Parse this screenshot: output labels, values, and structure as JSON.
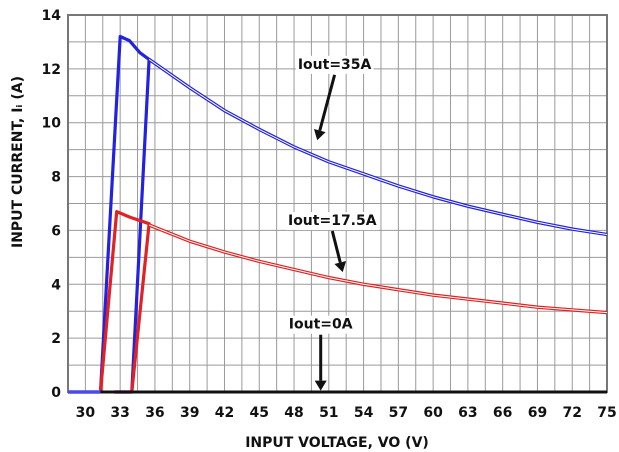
{
  "chart_data": {
    "type": "line",
    "xlabel": "INPUT VOLTAGE, VO (V)",
    "ylabel": "INPUT CURRENT, Iᵢ (A)",
    "xlim": [
      28.5,
      75
    ],
    "ylim": [
      0,
      14
    ],
    "xticks": [
      30,
      33,
      36,
      39,
      42,
      45,
      48,
      51,
      54,
      57,
      60,
      63,
      66,
      69,
      72,
      75
    ],
    "yticks": [
      0,
      2,
      4,
      6,
      8,
      10,
      12,
      14
    ],
    "grid": true,
    "series": [
      {
        "name": "Iout=35A",
        "color": "#2222e0",
        "rising": [
          [
            31.3,
            0
          ],
          [
            33.0,
            13.2
          ],
          [
            33.8,
            13.05
          ],
          [
            34.7,
            12.6
          ],
          [
            35.5,
            12.35
          ],
          [
            34.0,
            0
          ],
          [
            32.5,
            0
          ]
        ],
        "curve": [
          [
            35.5,
            12.35
          ],
          [
            39,
            11.3
          ],
          [
            42,
            10.45
          ],
          [
            45,
            9.75
          ],
          [
            48,
            9.1
          ],
          [
            51,
            8.55
          ],
          [
            54,
            8.1
          ],
          [
            57,
            7.65
          ],
          [
            60,
            7.25
          ],
          [
            63,
            6.9
          ],
          [
            66,
            6.6
          ],
          [
            69,
            6.3
          ],
          [
            72,
            6.05
          ],
          [
            75,
            5.85
          ]
        ]
      },
      {
        "name": "Iout=17.5A",
        "color": "#e02222",
        "rising": [
          [
            31.3,
            0
          ],
          [
            32.7,
            6.7
          ],
          [
            33.8,
            6.5
          ],
          [
            35.5,
            6.25
          ],
          [
            34.0,
            0
          ],
          [
            32.5,
            0
          ]
        ],
        "curve": [
          [
            35.5,
            6.2
          ],
          [
            39,
            5.6
          ],
          [
            42,
            5.2
          ],
          [
            45,
            4.85
          ],
          [
            48,
            4.55
          ],
          [
            51,
            4.25
          ],
          [
            54,
            4.0
          ],
          [
            57,
            3.8
          ],
          [
            60,
            3.6
          ],
          [
            63,
            3.45
          ],
          [
            66,
            3.3
          ],
          [
            69,
            3.15
          ],
          [
            72,
            3.05
          ],
          [
            75,
            2.95
          ]
        ]
      },
      {
        "name": "Iout=0A",
        "color": "#111111",
        "curve": [
          [
            28.5,
            0
          ],
          [
            75,
            0
          ]
        ]
      }
    ],
    "annotations": [
      {
        "text": "Iout=35A",
        "x": 51.5,
        "y": 12.0,
        "arrow_to": [
          50.0,
          9.35
        ]
      },
      {
        "text": "Iout=17.5A",
        "x": 51.3,
        "y": 6.2,
        "arrow_to": [
          52.2,
          4.45
        ]
      },
      {
        "text": "Iout=0A",
        "x": 50.3,
        "y": 2.35,
        "arrow_to": [
          50.3,
          0.05
        ]
      }
    ]
  }
}
